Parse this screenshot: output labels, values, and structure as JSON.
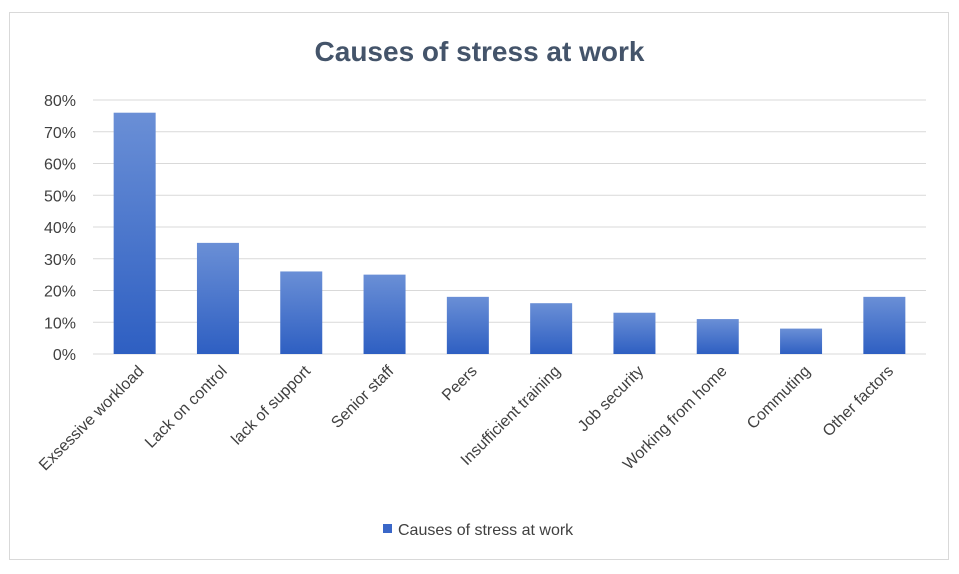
{
  "chart_data": {
    "type": "bar",
    "title": "Causes of stress at work",
    "xlabel": "",
    "ylabel": "",
    "categories": [
      "Exsessive workload",
      "Lack on control",
      "lack of support",
      "Senior staff",
      "Peers",
      "Insufficient training",
      "Job security",
      "Working from home",
      "Commuting",
      "Other factors"
    ],
    "series": [
      {
        "name": "Causes of stress at work",
        "values": [
          0.76,
          0.35,
          0.26,
          0.25,
          0.18,
          0.16,
          0.13,
          0.11,
          0.08,
          0.18
        ]
      }
    ],
    "ylim": [
      0,
      0.8
    ],
    "yticks": [
      0,
      0.1,
      0.2,
      0.3,
      0.4,
      0.5,
      0.6,
      0.7,
      0.8
    ],
    "ytick_labels": [
      "0%",
      "10%",
      "20%",
      "30%",
      "40%",
      "50%",
      "60%",
      "70%",
      "80%"
    ],
    "grid": true,
    "legend_position": "bottom",
    "colors": {
      "bar_top": "#6a8fd6",
      "bar_bottom": "#2e5fc2",
      "grid": "#d9d9d9",
      "title": "#44546a",
      "text": "#404040"
    }
  }
}
